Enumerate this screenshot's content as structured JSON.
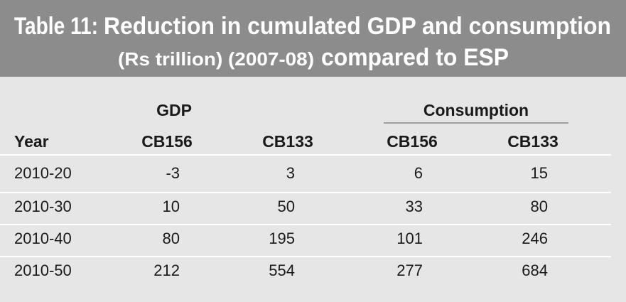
{
  "header": {
    "title_label": "Table 11:",
    "title_line1": "Reduction in cumulated GDP and consumption",
    "units": "(Rs trillion) (2007-08)",
    "title_line2": "compared to ESP"
  },
  "table": {
    "groups": [
      "GDP",
      "Consumption"
    ],
    "columns": [
      "Year",
      "CB156",
      "CB133",
      "CB156",
      "CB133"
    ],
    "rows": [
      [
        "2010-20",
        -3,
        3,
        6,
        15
      ],
      [
        "2010-30",
        10,
        50,
        33,
        80
      ],
      [
        "2010-40",
        80,
        195,
        101,
        246
      ],
      [
        "2010-50",
        212,
        554,
        277,
        684
      ]
    ]
  }
}
